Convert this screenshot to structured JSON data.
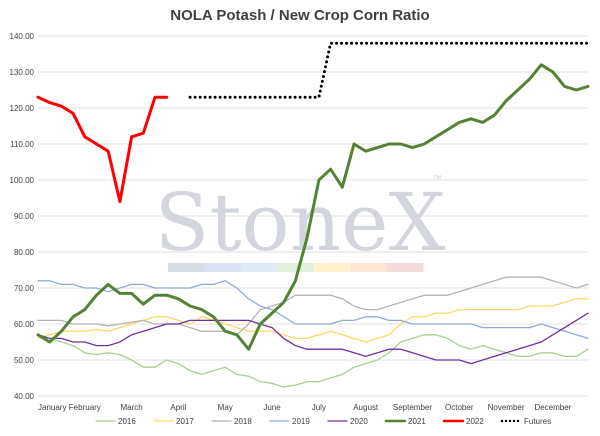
{
  "chart_data": {
    "type": "line",
    "title": "NOLA Potash / New Crop Corn Ratio",
    "xlabel": "",
    "ylabel": "",
    "ylim": [
      40,
      140
    ],
    "yticks": [
      "40.00",
      "50.00",
      "60.00",
      "70.00",
      "80.00",
      "90.00",
      "100.00",
      "110.00",
      "120.00",
      "130.00",
      "140.00"
    ],
    "month_labels": [
      "January",
      "February",
      "March",
      "April",
      "May",
      "June",
      "July",
      "August",
      "September",
      "October",
      "November",
      "December"
    ],
    "grid": true,
    "legend_position": "bottom",
    "watermark": "StoneX",
    "series": [
      {
        "name": "2016",
        "color": "#a9d08e",
        "dash": "solid",
        "width": 1.3,
        "x": [
          0,
          0.25,
          0.5,
          0.75,
          1,
          1.25,
          1.5,
          1.75,
          2,
          2.25,
          2.5,
          2.75,
          3,
          3.25,
          3.5,
          3.75,
          4,
          4.25,
          4.5,
          4.75,
          5,
          5.25,
          5.5,
          5.75,
          6,
          6.25,
          6.5,
          6.75,
          7,
          7.25,
          7.5,
          7.75,
          8,
          8.25,
          8.5,
          8.75,
          9,
          9.25,
          9.5,
          9.75,
          10,
          10.25,
          10.5,
          10.75,
          11,
          11.25,
          11.5,
          11.75
        ],
        "y": [
          57,
          56,
          55,
          54,
          52,
          51.5,
          52,
          51.5,
          50,
          48,
          48,
          50,
          49,
          47,
          46,
          47,
          48,
          46,
          45.5,
          44,
          43.5,
          42.5,
          43,
          44,
          44,
          45,
          46,
          48,
          49,
          50,
          52,
          55,
          56,
          57,
          57,
          56,
          54,
          53,
          54,
          53,
          52,
          51,
          51,
          52,
          52,
          51,
          51,
          53
        ]
      },
      {
        "name": "2017",
        "color": "#ffd966",
        "dash": "solid",
        "width": 1.3,
        "x": [
          0,
          0.25,
          0.5,
          0.75,
          1,
          1.25,
          1.5,
          1.75,
          2,
          2.25,
          2.5,
          2.75,
          3,
          3.25,
          3.5,
          3.75,
          4,
          4.25,
          4.5,
          4.75,
          5,
          5.25,
          5.5,
          5.75,
          6,
          6.25,
          6.5,
          6.75,
          7,
          7.25,
          7.5,
          7.75,
          8,
          8.25,
          8.5,
          8.75,
          9,
          9.25,
          9.5,
          9.75,
          10,
          10.25,
          10.5,
          10.75,
          11,
          11.25,
          11.5,
          11.75
        ],
        "y": [
          56,
          57,
          58,
          58,
          58,
          58.5,
          58,
          59,
          60,
          61,
          62,
          62,
          61,
          60,
          62,
          61,
          60,
          59,
          58,
          58,
          58,
          57,
          56,
          56,
          57,
          58,
          57,
          56,
          55,
          56,
          57,
          60,
          62,
          62,
          63,
          63,
          64,
          64,
          64,
          64,
          64,
          64,
          65,
          65,
          65,
          66,
          67,
          67
        ]
      },
      {
        "name": "2018",
        "color": "#b4b4b4",
        "dash": "solid",
        "width": 1.3,
        "x": [
          0,
          0.25,
          0.5,
          0.75,
          1,
          1.25,
          1.5,
          1.75,
          2,
          2.25,
          2.5,
          2.75,
          3,
          3.25,
          3.5,
          3.75,
          4,
          4.25,
          4.5,
          4.75,
          5,
          5.25,
          5.5,
          5.75,
          6,
          6.25,
          6.5,
          6.75,
          7,
          7.25,
          7.5,
          7.75,
          8,
          8.25,
          8.5,
          8.75,
          9,
          9.25,
          9.5,
          9.75,
          10,
          10.25,
          10.5,
          10.75,
          11,
          11.25,
          11.5,
          11.75
        ],
        "y": [
          61,
          61,
          61,
          60,
          60,
          60,
          59.5,
          60,
          60.5,
          61,
          60,
          60,
          60,
          59,
          58,
          58,
          58,
          57,
          60,
          64,
          65,
          66,
          68,
          68,
          68,
          68,
          67,
          65,
          64,
          64,
          65,
          66,
          67,
          68,
          68,
          68,
          69,
          70,
          71,
          72,
          73,
          73,
          73,
          73,
          72,
          71,
          70,
          71
        ]
      },
      {
        "name": "2019",
        "color": "#8eaadb",
        "dash": "solid",
        "width": 1.3,
        "x": [
          0,
          0.25,
          0.5,
          0.75,
          1,
          1.25,
          1.5,
          1.75,
          2,
          2.25,
          2.5,
          2.75,
          3,
          3.25,
          3.5,
          3.75,
          4,
          4.25,
          4.5,
          4.75,
          5,
          5.25,
          5.5,
          5.75,
          6,
          6.25,
          6.5,
          6.75,
          7,
          7.25,
          7.5,
          7.75,
          8,
          8.25,
          8.5,
          8.75,
          9,
          9.25,
          9.5,
          9.75,
          10,
          10.25,
          10.5,
          10.75,
          11,
          11.25,
          11.5,
          11.75
        ],
        "y": [
          72,
          72,
          71,
          71,
          70,
          70,
          69,
          70,
          71,
          71,
          70,
          70,
          70,
          70,
          71,
          71,
          72,
          70,
          67,
          65,
          64,
          62,
          60,
          60,
          60,
          60,
          61,
          61,
          62,
          62,
          61,
          61,
          60,
          60,
          60,
          60,
          60,
          60,
          59,
          59,
          59,
          59,
          59,
          60,
          59,
          58,
          57,
          56
        ]
      },
      {
        "name": "2020",
        "color": "#7030a0",
        "dash": "solid",
        "width": 1.3,
        "x": [
          0,
          0.25,
          0.5,
          0.75,
          1,
          1.25,
          1.5,
          1.75,
          2,
          2.25,
          2.5,
          2.75,
          3,
          3.25,
          3.5,
          3.75,
          4,
          4.25,
          4.5,
          4.75,
          5,
          5.25,
          5.5,
          5.75,
          6,
          6.25,
          6.5,
          6.75,
          7,
          7.25,
          7.5,
          7.75,
          8,
          8.25,
          8.5,
          8.75,
          9,
          9.25,
          9.5,
          9.75,
          10,
          10.25,
          10.5,
          10.75,
          11,
          11.25,
          11.5,
          11.75
        ],
        "y": [
          57,
          56,
          56,
          55,
          55,
          54,
          54,
          55,
          57,
          58,
          59,
          60,
          60,
          61,
          61,
          61,
          61,
          61,
          61,
          60,
          59,
          56,
          54,
          53,
          53,
          53,
          53,
          52,
          51,
          52,
          53,
          53,
          52,
          51,
          50,
          50,
          50,
          49,
          50,
          51,
          52,
          53,
          54,
          55,
          57,
          59,
          61,
          63
        ]
      },
      {
        "name": "2021",
        "color": "#548235",
        "dash": "solid",
        "width": 3,
        "x": [
          0,
          0.25,
          0.5,
          0.75,
          1,
          1.25,
          1.5,
          1.75,
          2,
          2.25,
          2.5,
          2.75,
          3,
          3.25,
          3.5,
          3.75,
          4,
          4.25,
          4.5,
          4.75,
          5,
          5.25,
          5.5,
          5.75,
          6,
          6.25,
          6.5,
          6.75,
          7,
          7.25,
          7.5,
          7.75,
          8,
          8.25,
          8.5,
          8.75,
          9,
          9.25,
          9.5,
          9.75,
          10,
          10.25,
          10.5,
          10.75,
          11,
          11.25,
          11.5,
          11.75
        ],
        "y": [
          57,
          55,
          58,
          62,
          64,
          68,
          71,
          68.5,
          68.5,
          65.5,
          68,
          68,
          67,
          65,
          64,
          62,
          58,
          57,
          53,
          60,
          63,
          66,
          72,
          84,
          100,
          103,
          98,
          110,
          108,
          109,
          110,
          110,
          109,
          110,
          112,
          114,
          116,
          117,
          116,
          118,
          122,
          125,
          128,
          132,
          130,
          126,
          125,
          126
        ]
      },
      {
        "name": "2022",
        "color": "#ff0000",
        "dash": "solid",
        "width": 3,
        "x": [
          0,
          0.25,
          0.5,
          0.75,
          1,
          1.25,
          1.5,
          1.75,
          2,
          2.25,
          2.5,
          2.75
        ],
        "y": [
          123,
          121.5,
          120.5,
          118.5,
          112,
          110,
          108,
          94,
          112,
          113,
          123,
          123
        ]
      },
      {
        "name": "Futures",
        "color": "#000000",
        "dash": "dots",
        "width": 3,
        "x": [
          3.25,
          3.5,
          3.75,
          4,
          4.25,
          4.5,
          4.75,
          5,
          5.25,
          5.5,
          5.75,
          6,
          6.25,
          6.5,
          6.75,
          7,
          7.25,
          7.5,
          7.75,
          8,
          8.25,
          8.5,
          8.75,
          9,
          9.25,
          9.5,
          9.75,
          10,
          10.25,
          10.5,
          10.75,
          11,
          11.25,
          11.5,
          11.75
        ],
        "y": [
          123,
          123,
          123,
          123,
          123,
          123,
          123,
          123,
          123,
          123,
          123,
          123,
          138,
          138,
          138,
          138,
          138,
          138,
          138,
          138,
          138,
          138,
          138,
          138,
          138,
          138,
          138,
          138,
          138,
          138,
          138,
          138,
          138,
          138,
          138
        ]
      }
    ]
  }
}
